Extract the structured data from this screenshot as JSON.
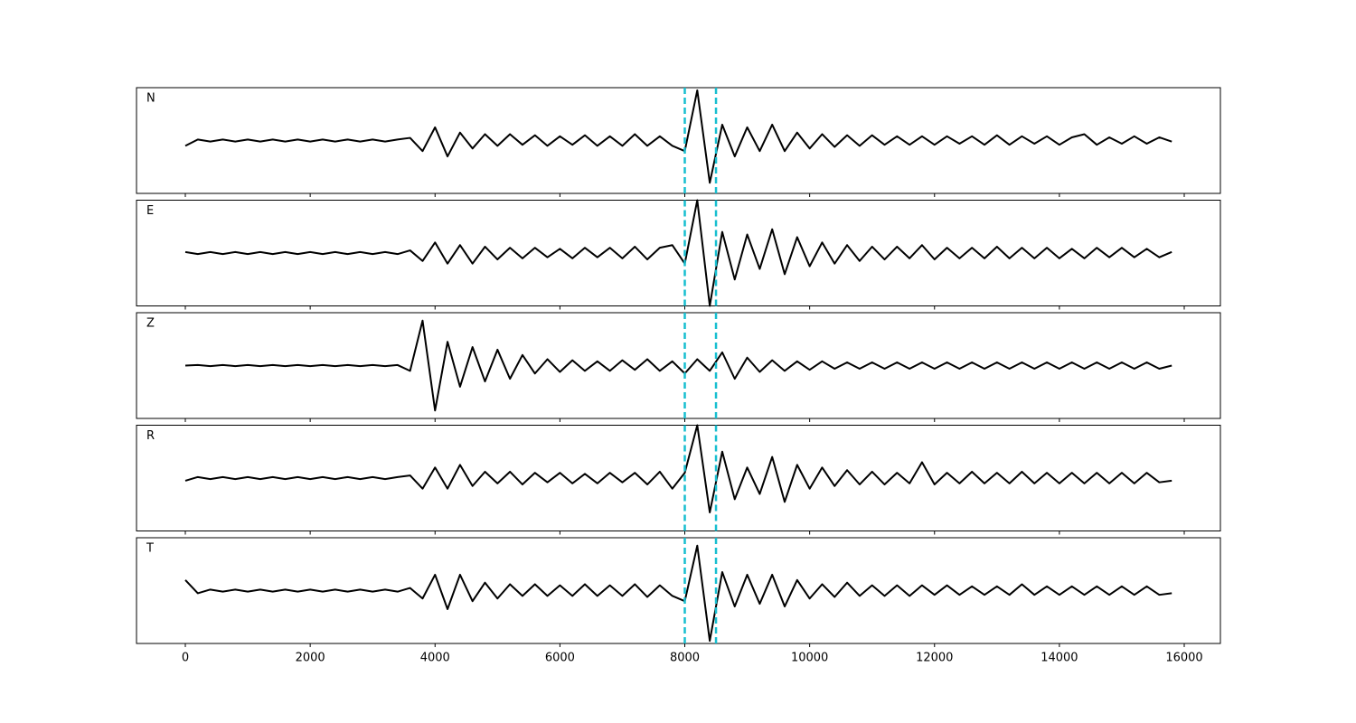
{
  "chart_data": {
    "type": "line",
    "x": [
      0,
      200,
      400,
      600,
      800,
      1000,
      1200,
      1400,
      1600,
      1800,
      2000,
      2200,
      2400,
      2600,
      2800,
      3000,
      3200,
      3400,
      3600,
      3800,
      4000,
      4200,
      4400,
      4600,
      4800,
      5000,
      5200,
      5400,
      5600,
      5800,
      6000,
      6200,
      6400,
      6600,
      6800,
      7000,
      7200,
      7400,
      7600,
      7800,
      8000,
      8200,
      8400,
      8600,
      8800,
      9000,
      9200,
      9400,
      9600,
      9800,
      10000,
      10200,
      10400,
      10600,
      10800,
      11000,
      11200,
      11400,
      11600,
      11800,
      12000,
      12200,
      12400,
      12600,
      12800,
      13000,
      13200,
      13400,
      13600,
      13800,
      14000,
      14200,
      14400,
      14600,
      14800,
      15000,
      15200,
      15400,
      15600,
      15800
    ],
    "xlim": [
      -782,
      16579
    ],
    "xticks": [
      0,
      2000,
      4000,
      6000,
      8000,
      10000,
      12000,
      14000,
      16000
    ],
    "ylim": [
      -1,
      1
    ],
    "vlines": {
      "values": [
        8000,
        8500
      ],
      "color": "#17becf"
    },
    "series": [
      {
        "name": "N",
        "color": "#000000",
        "values": [
          -0.1,
          0.02,
          -0.02,
          0.02,
          -0.02,
          0.02,
          -0.02,
          0.02,
          -0.02,
          0.02,
          -0.02,
          0.02,
          -0.02,
          0.02,
          -0.02,
          0.02,
          -0.02,
          0.02,
          0.05,
          -0.2,
          0.25,
          -0.3,
          0.15,
          -0.15,
          0.12,
          -0.1,
          0.12,
          -0.08,
          0.1,
          -0.1,
          0.08,
          -0.08,
          0.1,
          -0.1,
          0.08,
          -0.1,
          0.12,
          -0.1,
          0.08,
          -0.1,
          -0.2,
          0.95,
          -0.8,
          0.3,
          -0.3,
          0.25,
          -0.2,
          0.3,
          -0.2,
          0.15,
          -0.15,
          0.12,
          -0.12,
          0.1,
          -0.1,
          0.1,
          -0.08,
          0.08,
          -0.08,
          0.08,
          -0.08,
          0.08,
          -0.06,
          0.08,
          -0.08,
          0.1,
          -0.08,
          0.08,
          -0.06,
          0.08,
          -0.08,
          0.06,
          0.12,
          -0.08,
          0.06,
          -0.06,
          0.08,
          -0.06,
          0.06,
          -0.02
        ]
      },
      {
        "name": "E",
        "color": "#000000",
        "values": [
          0.02,
          -0.02,
          0.02,
          -0.02,
          0.02,
          -0.02,
          0.02,
          -0.02,
          0.02,
          -0.02,
          0.02,
          -0.02,
          0.02,
          -0.02,
          0.02,
          -0.02,
          0.02,
          -0.02,
          0.05,
          -0.15,
          0.2,
          -0.2,
          0.15,
          -0.2,
          0.12,
          -0.12,
          0.1,
          -0.1,
          0.1,
          -0.08,
          0.08,
          -0.1,
          0.1,
          -0.08,
          0.1,
          -0.1,
          0.12,
          -0.12,
          0.1,
          0.15,
          -0.2,
          1.0,
          -1.0,
          0.4,
          -0.5,
          0.35,
          -0.3,
          0.45,
          -0.4,
          0.3,
          -0.25,
          0.2,
          -0.2,
          0.15,
          -0.15,
          0.12,
          -0.12,
          0.12,
          -0.1,
          0.15,
          -0.12,
          0.1,
          -0.1,
          0.1,
          -0.1,
          0.12,
          -0.1,
          0.1,
          -0.1,
          0.1,
          -0.1,
          0.08,
          -0.1,
          0.1,
          -0.08,
          0.1,
          -0.08,
          0.08,
          -0.08,
          0.02
        ]
      },
      {
        "name": "Z",
        "color": "#000000",
        "values": [
          0,
          0.01,
          -0.01,
          0.01,
          -0.01,
          0.01,
          -0.01,
          0.01,
          -0.01,
          0.01,
          -0.01,
          0.01,
          -0.01,
          0.01,
          -0.01,
          0.01,
          -0.01,
          0.01,
          -0.1,
          0.85,
          -0.85,
          0.45,
          -0.4,
          0.35,
          -0.3,
          0.3,
          -0.25,
          0.2,
          -0.15,
          0.12,
          -0.12,
          0.1,
          -0.1,
          0.08,
          -0.1,
          0.1,
          -0.08,
          0.12,
          -0.1,
          0.08,
          -0.15,
          0.12,
          -0.1,
          0.25,
          -0.25,
          0.15,
          -0.12,
          0.1,
          -0.1,
          0.08,
          -0.08,
          0.08,
          -0.06,
          0.06,
          -0.06,
          0.06,
          -0.06,
          0.06,
          -0.06,
          0.06,
          -0.06,
          0.06,
          -0.06,
          0.06,
          -0.06,
          0.06,
          -0.06,
          0.06,
          -0.06,
          0.06,
          -0.06,
          0.06,
          -0.06,
          0.06,
          -0.06,
          0.06,
          -0.06,
          0.06,
          -0.06,
          0
        ]
      },
      {
        "name": "R",
        "color": "#000000",
        "values": [
          -0.05,
          0.02,
          -0.02,
          0.02,
          -0.02,
          0.02,
          -0.02,
          0.02,
          -0.02,
          0.02,
          -0.02,
          0.02,
          -0.02,
          0.02,
          -0.02,
          0.02,
          -0.02,
          0.02,
          0.05,
          -0.2,
          0.2,
          -0.2,
          0.25,
          -0.15,
          0.12,
          -0.1,
          0.12,
          -0.12,
          0.1,
          -0.08,
          0.1,
          -0.1,
          0.08,
          -0.1,
          0.1,
          -0.08,
          0.1,
          -0.12,
          0.12,
          -0.2,
          0.1,
          1.0,
          -0.65,
          0.5,
          -0.4,
          0.2,
          -0.3,
          0.4,
          -0.45,
          0.25,
          -0.2,
          0.2,
          -0.15,
          0.15,
          -0.12,
          0.12,
          -0.12,
          0.1,
          -0.1,
          0.3,
          -0.12,
          0.1,
          -0.1,
          0.12,
          -0.1,
          0.1,
          -0.1,
          0.12,
          -0.1,
          0.1,
          -0.1,
          0.1,
          -0.1,
          0.1,
          -0.1,
          0.1,
          -0.1,
          0.1,
          -0.08,
          -0.05
        ]
      },
      {
        "name": "T",
        "color": "#000000",
        "values": [
          0.2,
          -0.05,
          0.02,
          -0.02,
          0.02,
          -0.02,
          0.02,
          -0.02,
          0.02,
          -0.02,
          0.02,
          -0.02,
          0.02,
          -0.02,
          0.02,
          -0.02,
          0.02,
          -0.02,
          0.05,
          -0.15,
          0.3,
          -0.35,
          0.3,
          -0.2,
          0.15,
          -0.15,
          0.12,
          -0.1,
          0.12,
          -0.1,
          0.1,
          -0.1,
          0.12,
          -0.1,
          0.1,
          -0.1,
          0.12,
          -0.12,
          0.1,
          -0.1,
          -0.2,
          0.85,
          -0.95,
          0.35,
          -0.3,
          0.3,
          -0.25,
          0.3,
          -0.3,
          0.2,
          -0.15,
          0.12,
          -0.12,
          0.15,
          -0.1,
          0.1,
          -0.1,
          0.1,
          -0.1,
          0.1,
          -0.08,
          0.1,
          -0.08,
          0.08,
          -0.08,
          0.08,
          -0.08,
          0.12,
          -0.08,
          0.08,
          -0.08,
          0.08,
          -0.08,
          0.08,
          -0.08,
          0.08,
          -0.08,
          0.08,
          -0.08,
          -0.05
        ]
      }
    ]
  }
}
